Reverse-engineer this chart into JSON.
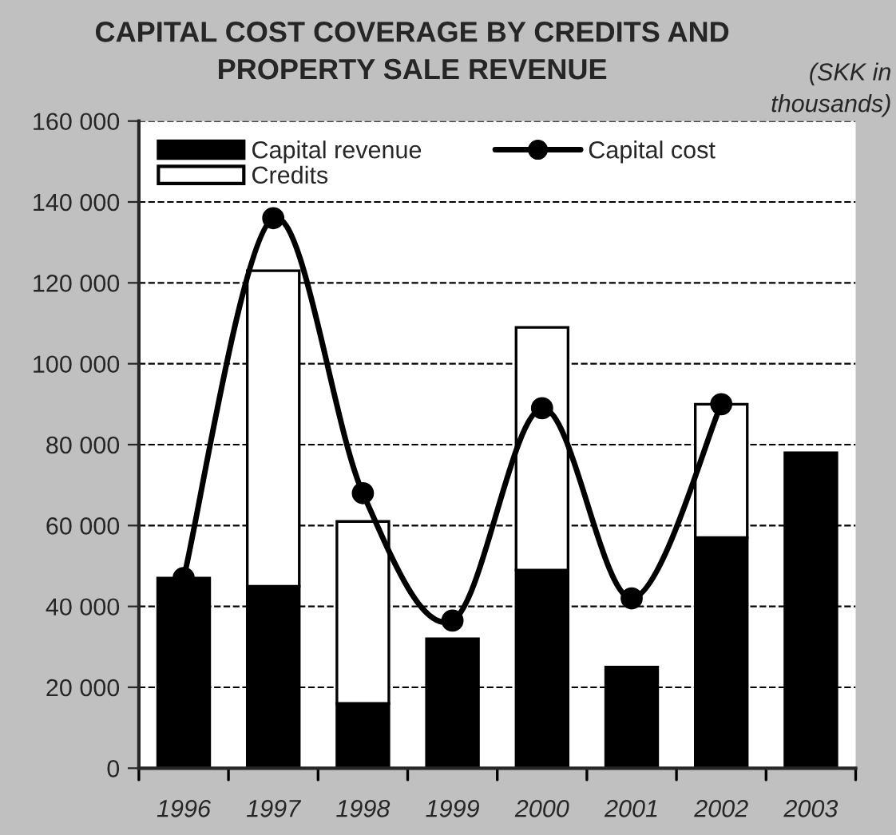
{
  "chart_data": {
    "type": "bar",
    "title": "CAPITAL COST COVERAGE BY CREDITS AND\nPROPERTY SALE REVENUE",
    "annotations": [
      "(SKK in\nthousands)"
    ],
    "categories": [
      "1996",
      "1997",
      "1998",
      "1999",
      "2000",
      "2001",
      "2002",
      "2003"
    ],
    "stacked": true,
    "series": [
      {
        "name": "Capital revenue",
        "color": "#000000",
        "values": [
          47000,
          45000,
          16000,
          32000,
          49000,
          25000,
          57000,
          78000
        ]
      },
      {
        "name": "Credits",
        "color": "#ffffff",
        "values": [
          null,
          78000,
          45000,
          null,
          60000,
          null,
          33000,
          null
        ]
      },
      {
        "name": "Capital cost",
        "type": "line",
        "color": "#000000",
        "marker": "circle",
        "values": [
          47000,
          136000,
          68000,
          36500,
          89000,
          42000,
          90000,
          null
        ]
      }
    ],
    "ylim": [
      0,
      160000
    ],
    "yticks": [
      {
        "value": 0,
        "label": "0"
      },
      {
        "value": 20000,
        "label": "20 000"
      },
      {
        "value": 40000,
        "label": "40 000"
      },
      {
        "value": 60000,
        "label": "60 000"
      },
      {
        "value": 80000,
        "label": "80 000"
      },
      {
        "value": 100000,
        "label": "100 000"
      },
      {
        "value": 120000,
        "label": "120 000"
      },
      {
        "value": 140000,
        "label": "140 000"
      },
      {
        "value": 160000,
        "label": "160 000"
      }
    ],
    "grid": "y",
    "legend": "top left"
  }
}
